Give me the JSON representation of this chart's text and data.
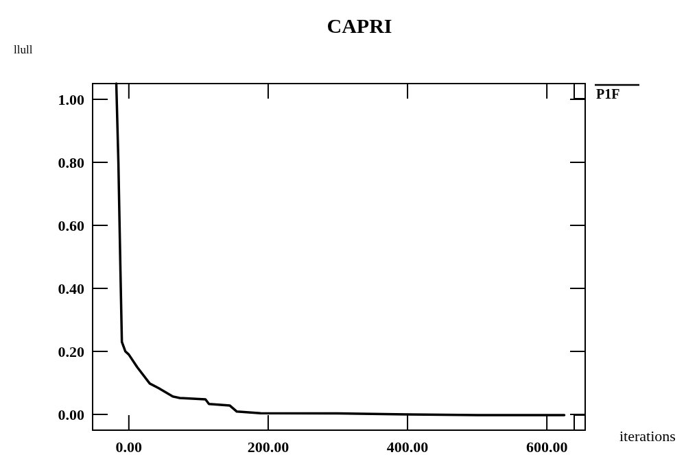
{
  "chart_data": {
    "type": "line",
    "title": "CAPRI",
    "ylabel": "llull",
    "xlabel": "iterations",
    "xlim": [
      -52,
      655
    ],
    "ylim": [
      -0.05,
      1.05
    ],
    "xticks": [
      {
        "value": 0,
        "label": "0.00"
      },
      {
        "value": 200,
        "label": "200.00"
      },
      {
        "value": 400,
        "label": "400.00"
      },
      {
        "value": 600,
        "label": "600.00"
      }
    ],
    "yticks": [
      {
        "value": 0,
        "label": "0.00"
      },
      {
        "value": 0.2,
        "label": "0.20"
      },
      {
        "value": 0.4,
        "label": "0.40"
      },
      {
        "value": 0.6,
        "label": "0.60"
      },
      {
        "value": 0.8,
        "label": "0.80"
      },
      {
        "value": 1,
        "label": "1.00"
      }
    ],
    "legend": "top right",
    "grid": false,
    "series": [
      {
        "name": "P1F",
        "color": "#000000",
        "x": [
          -18,
          -15,
          -12,
          -10,
          -5,
          0,
          12,
          30,
          43,
          63,
          73,
          110,
          115,
          145,
          155,
          189,
          300,
          400,
          500,
          625
        ],
        "values": [
          1.05,
          0.8,
          0.45,
          0.23,
          0.2,
          0.19,
          0.15,
          0.098,
          0.083,
          0.057,
          0.052,
          0.048,
          0.033,
          0.028,
          0.009,
          0.004,
          0.003,
          0.0,
          -0.002,
          -0.002
        ]
      }
    ]
  }
}
